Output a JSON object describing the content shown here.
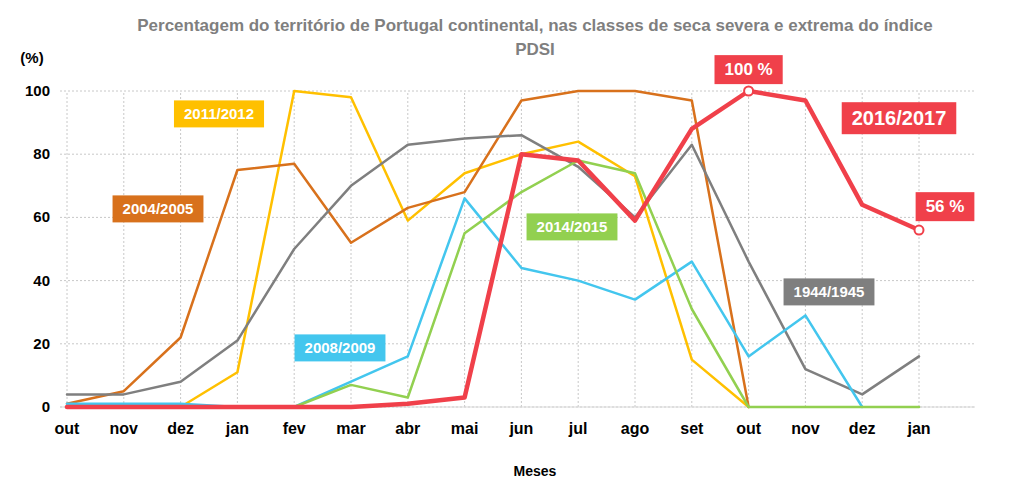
{
  "chart_data": {
    "type": "line",
    "title": "Percentagem do território de Portugal continental, nas classes de seca severa e extrema do índice PDSI",
    "x_label": "Meses",
    "y_label": "(%)",
    "categories": [
      "out",
      "nov",
      "dez",
      "jan",
      "fev",
      "mar",
      "abr",
      "mai",
      "jun",
      "jul",
      "ago",
      "set",
      "out",
      "nov",
      "dez",
      "jan"
    ],
    "ylim": [
      0,
      100
    ],
    "yticks": [
      0,
      20,
      40,
      60,
      80,
      100
    ],
    "grid": true,
    "series": [
      {
        "name": "2011/2012",
        "color": "#ffc000",
        "values": [
          0,
          0,
          0,
          11,
          100,
          98,
          59,
          74,
          80,
          84,
          73,
          15,
          0,
          null,
          null,
          null
        ]
      },
      {
        "name": "2004/2005",
        "color": "#d8711c",
        "values": [
          1,
          5,
          22,
          75,
          77,
          52,
          63,
          68,
          97,
          100,
          100,
          97,
          0,
          null,
          null,
          null
        ]
      },
      {
        "name": "1944/1945",
        "color": "#7f7f7f",
        "values": [
          4,
          4,
          8,
          21,
          50,
          70,
          83,
          85,
          86,
          76,
          60,
          83,
          46,
          12,
          4,
          16
        ]
      },
      {
        "name": "2008/2009",
        "color": "#43c6ee",
        "values": [
          1,
          1,
          1,
          0,
          0,
          8,
          16,
          66,
          44,
          40,
          34,
          46,
          16,
          29,
          0,
          null
        ]
      },
      {
        "name": "2014/2015",
        "color": "#92d050",
        "values": [
          0,
          0,
          0,
          0,
          0,
          7,
          3,
          55,
          68,
          78,
          74,
          31,
          0,
          0,
          0,
          0
        ]
      },
      {
        "name": "2016/2017",
        "color": "#f0404a",
        "values": [
          0,
          0,
          0,
          0,
          0,
          0,
          1,
          3,
          80,
          78,
          59,
          88,
          100,
          97,
          64,
          56
        ],
        "value_labels": [
          null,
          null,
          null,
          null,
          null,
          null,
          null,
          null,
          null,
          null,
          null,
          null,
          "100 %",
          null,
          null,
          "56 %"
        ]
      }
    ]
  }
}
